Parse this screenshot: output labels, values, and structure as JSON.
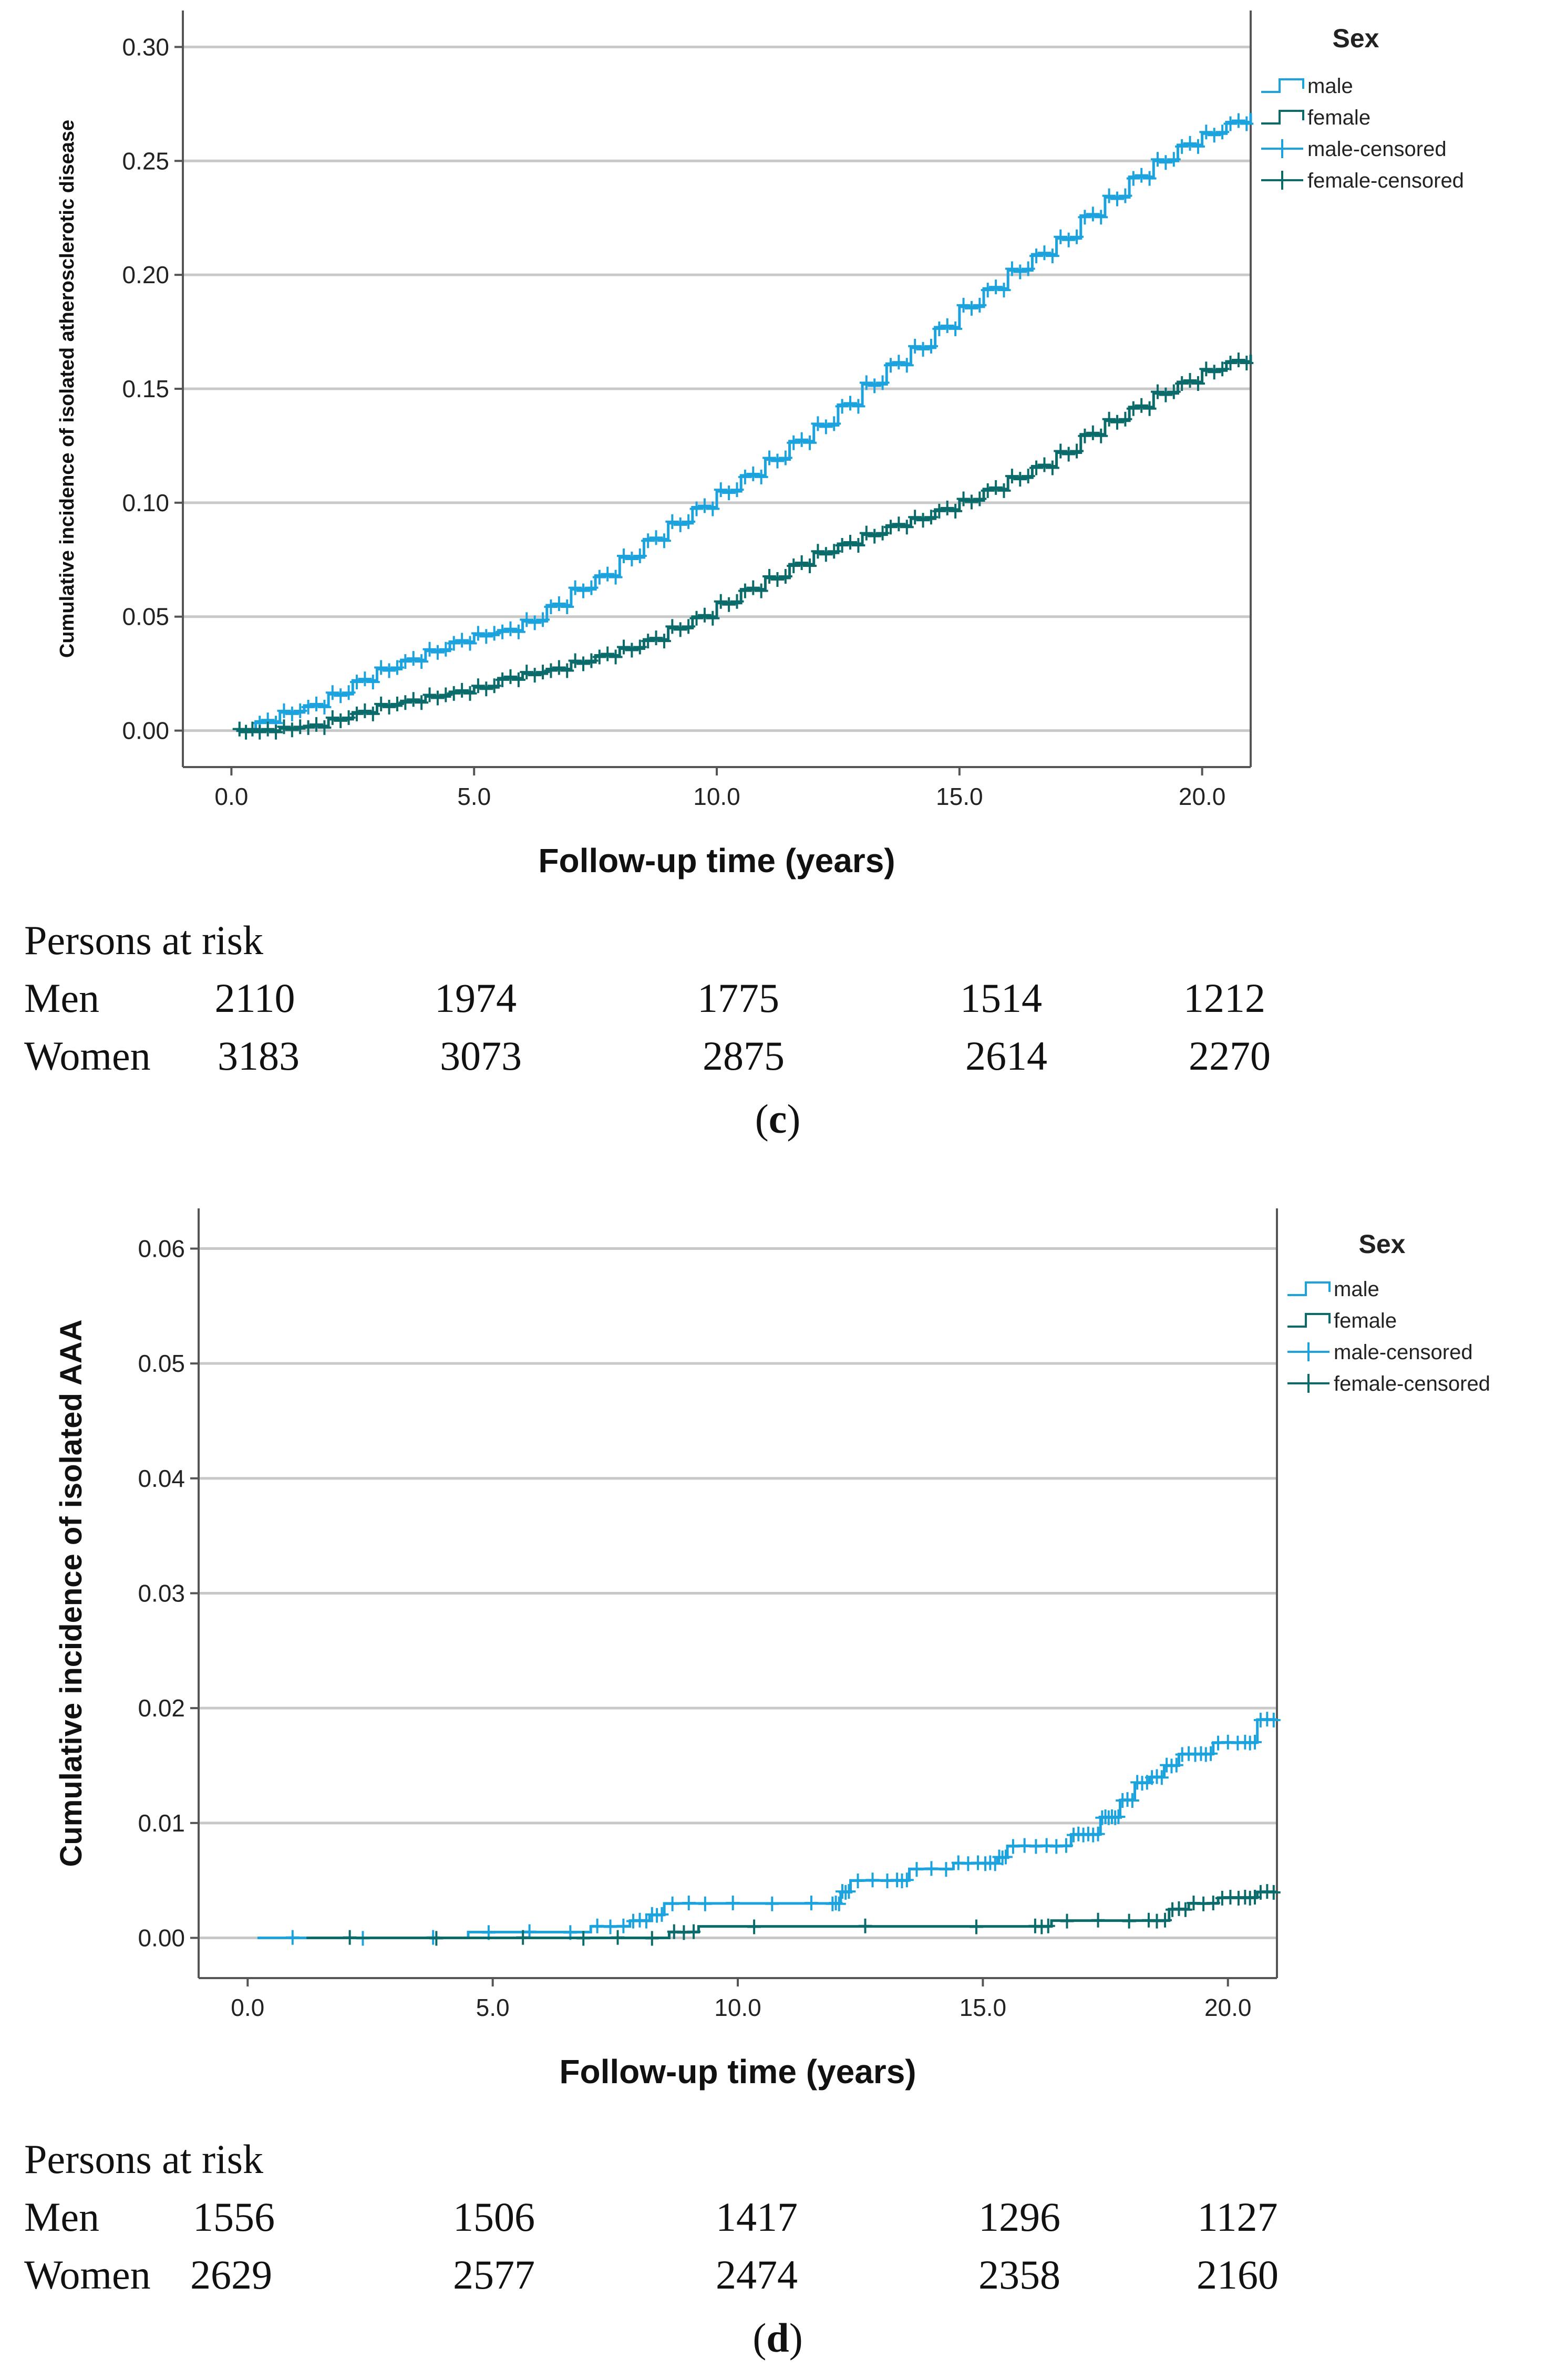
{
  "chart_data": [
    {
      "type": "line",
      "panel": "c",
      "ylabel": "Cumulative incidence of isolated atherosclerotic disease",
      "xlabel": "Follow-up time (years)",
      "xlim": [
        -1.0,
        21.0
      ],
      "ylim": [
        -0.016,
        0.316
      ],
      "xticks": [
        0,
        5,
        10,
        15,
        20
      ],
      "xtick_labels": [
        "0.0",
        "5.0",
        "10.0",
        "15.0",
        "20.0"
      ],
      "yticks": [
        0,
        0.05,
        0.1,
        0.15,
        0.2,
        0.25,
        0.3
      ],
      "ytick_labels": [
        "0.00",
        "0.05",
        "0.10",
        "0.15",
        "0.20",
        "0.25",
        "0.30"
      ],
      "grid": "horizontal",
      "legend_title": "Sex",
      "legend": [
        "male",
        "female",
        "male-censored",
        "female-censored"
      ],
      "series": [
        {
          "name": "male",
          "color": "#1CA3DE",
          "x": [
            0.1,
            0.5,
            1.0,
            1.5,
            2.0,
            2.5,
            3.0,
            3.5,
            4.0,
            4.5,
            5.0,
            5.5,
            6.0,
            6.5,
            7.0,
            7.5,
            8.0,
            8.5,
            9.0,
            9.5,
            10.0,
            10.5,
            11.0,
            11.5,
            12.0,
            12.5,
            13.0,
            13.5,
            14.0,
            14.5,
            15.0,
            15.5,
            16.0,
            16.5,
            17.0,
            17.5,
            18.0,
            18.5,
            19.0,
            19.5,
            20.0,
            20.5,
            21.0
          ],
          "y": [
            0.0,
            0.004,
            0.008,
            0.011,
            0.016,
            0.022,
            0.027,
            0.031,
            0.035,
            0.039,
            0.042,
            0.044,
            0.048,
            0.055,
            0.062,
            0.068,
            0.076,
            0.084,
            0.091,
            0.098,
            0.105,
            0.112,
            0.119,
            0.127,
            0.134,
            0.143,
            0.152,
            0.161,
            0.168,
            0.177,
            0.186,
            0.194,
            0.202,
            0.209,
            0.216,
            0.226,
            0.234,
            0.243,
            0.25,
            0.257,
            0.262,
            0.267,
            0.271
          ]
        },
        {
          "name": "female",
          "color": "#0A6B6A",
          "x": [
            0.1,
            0.5,
            1.0,
            1.5,
            2.0,
            2.5,
            3.0,
            3.5,
            4.0,
            4.5,
            5.0,
            5.5,
            6.0,
            6.5,
            7.0,
            7.5,
            8.0,
            8.5,
            9.0,
            9.5,
            10.0,
            10.5,
            11.0,
            11.5,
            12.0,
            12.5,
            13.0,
            13.5,
            14.0,
            14.5,
            15.0,
            15.5,
            16.0,
            16.5,
            17.0,
            17.5,
            18.0,
            18.5,
            19.0,
            19.5,
            20.0,
            20.5,
            21.0
          ],
          "y": [
            0.0,
            0.0,
            0.001,
            0.002,
            0.005,
            0.008,
            0.011,
            0.013,
            0.015,
            0.017,
            0.019,
            0.023,
            0.025,
            0.027,
            0.03,
            0.033,
            0.036,
            0.04,
            0.045,
            0.05,
            0.056,
            0.062,
            0.067,
            0.073,
            0.078,
            0.082,
            0.086,
            0.09,
            0.093,
            0.097,
            0.101,
            0.106,
            0.111,
            0.116,
            0.122,
            0.13,
            0.136,
            0.142,
            0.148,
            0.153,
            0.158,
            0.162,
            0.165
          ]
        }
      ],
      "at_risk": {
        "title": "Persons at risk",
        "rows": [
          {
            "label": "Men",
            "values": [
              "2110",
              "1974",
              "1775",
              "1514",
              "1212"
            ]
          },
          {
            "label": "Women",
            "values": [
              "3183",
              "3073",
              "2875",
              "2614",
              "2270"
            ]
          }
        ]
      },
      "panel_label_open": "(",
      "panel_label_letter": "c",
      "panel_label_close": ")"
    },
    {
      "type": "line",
      "panel": "d",
      "ylabel": "Cumulative incidence of isolated AAA",
      "xlabel": "Follow-up time (years)",
      "xlim": [
        -1.0,
        21.0
      ],
      "ylim": [
        -0.0035,
        0.0635
      ],
      "xticks": [
        0,
        5,
        10,
        15,
        20
      ],
      "xtick_labels": [
        "0.0",
        "5.0",
        "10.0",
        "15.0",
        "20.0"
      ],
      "yticks": [
        0,
        0.01,
        0.02,
        0.03,
        0.04,
        0.05,
        0.06
      ],
      "ytick_labels": [
        "0.00",
        "0.01",
        "0.02",
        "0.03",
        "0.04",
        "0.05",
        "0.06"
      ],
      "grid": "horizontal",
      "legend_title": "Sex",
      "legend": [
        "male",
        "female",
        "male-censored",
        "female-censored"
      ],
      "series": [
        {
          "name": "male",
          "color": "#1CA3DE",
          "x": [
            0.2,
            4.5,
            7.0,
            7.8,
            8.2,
            8.5,
            9.5,
            11.9,
            12.1,
            12.3,
            13.2,
            13.5,
            14.4,
            15.0,
            15.3,
            15.5,
            16.2,
            16.8,
            17.1,
            17.4,
            17.6,
            17.8,
            18.1,
            18.4,
            18.7,
            19.0,
            19.4,
            19.7,
            20.3,
            20.6,
            21.0
          ],
          "y": [
            0.0,
            0.0005,
            0.001,
            0.0015,
            0.002,
            0.003,
            0.003,
            0.003,
            0.004,
            0.005,
            0.005,
            0.006,
            0.0065,
            0.0065,
            0.007,
            0.008,
            0.008,
            0.009,
            0.009,
            0.0105,
            0.0105,
            0.012,
            0.0135,
            0.014,
            0.015,
            0.016,
            0.016,
            0.017,
            0.017,
            0.019,
            0.019
          ]
        },
        {
          "name": "female",
          "color": "#0A6B6A",
          "x": [
            1.2,
            6.5,
            8.6,
            9.2,
            16.0,
            16.4,
            18.3,
            18.8,
            19.2,
            19.8,
            20.3,
            20.6,
            21.0
          ],
          "y": [
            0.0,
            0.0,
            0.0005,
            0.001,
            0.001,
            0.0015,
            0.0015,
            0.0025,
            0.003,
            0.0035,
            0.0035,
            0.004,
            0.004
          ]
        }
      ],
      "at_risk": {
        "title": "Persons at risk",
        "rows": [
          {
            "label": "Men",
            "values": [
              "1556",
              "1506",
              "1417",
              "1296",
              "1127"
            ]
          },
          {
            "label": "Women",
            "values": [
              "2629",
              "2577",
              "2474",
              "2358",
              "2160"
            ]
          }
        ]
      },
      "panel_label_open": "(",
      "panel_label_letter": "d",
      "panel_label_close": ")"
    }
  ]
}
